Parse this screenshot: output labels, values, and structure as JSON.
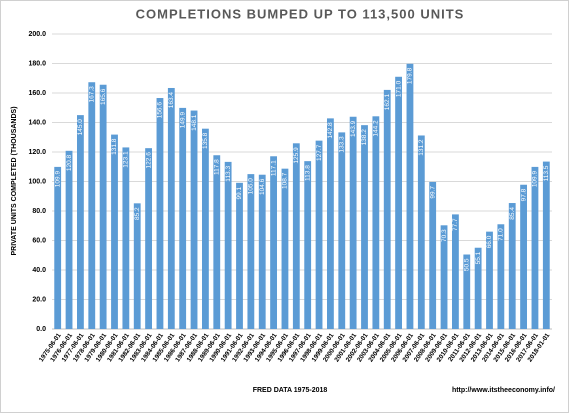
{
  "chart_data": {
    "type": "bar",
    "title": "COMPLETIONS BUMPED UP TO 113,500 UNITS",
    "y_label": "PRIVATE UNITS COMPLETED (THOUSANDS)",
    "x_label": "FRED DATA 1975-2018",
    "annotation": "http://www.itstheeconomy.info/",
    "categories": [
      "1975-06-01",
      "1976-06-01",
      "1977-06-01",
      "1978-06-01",
      "1979-06-01",
      "1980-06-01",
      "1981-06-01",
      "1982-06-01",
      "1983-06-01",
      "1984-06-01",
      "1985-06-01",
      "1986-06-01",
      "1987-06-01",
      "1988-06-01",
      "1989-06-01",
      "1990-06-01",
      "1991-06-01",
      "1992-06-01",
      "1993-06-01",
      "1994-06-01",
      "1995-06-01",
      "1996-06-01",
      "1997-06-01",
      "1998-06-01",
      "1999-06-01",
      "2000-06-01",
      "2001-06-01",
      "2002-06-01",
      "2003-06-01",
      "2004-06-01",
      "2005-06-01",
      "2006-06-01",
      "2007-06-01",
      "2008-06-01",
      "2009-06-01",
      "2010-06-01",
      "2011-06-01",
      "2012-06-01",
      "2013-06-01",
      "2014-06-01",
      "2015-06-01",
      "2016-06-01",
      "2017-06-01",
      "2018-01-01"
    ],
    "values": [
      109.9,
      120.8,
      145.0,
      167.3,
      165.6,
      131.8,
      123.1,
      85.2,
      122.6,
      156.6,
      163.4,
      149.9,
      148.1,
      135.8,
      117.8,
      113.3,
      99.1,
      105.0,
      104.6,
      117.1,
      108.7,
      125.9,
      113.8,
      127.7,
      142.8,
      133.3,
      143.9,
      138.2,
      144.2,
      162.1,
      171.0,
      179.8,
      131.2,
      99.7,
      70.3,
      77.7,
      50.5,
      55.1,
      66.0,
      71.0,
      85.4,
      97.8,
      109.9,
      113.5
    ],
    "value_labels": [
      "109.9",
      "120.8",
      "145.0",
      "167.3",
      "165.6",
      "131.8",
      "123.1",
      "85.2",
      "122.6",
      "156.6",
      "163.4",
      "149.9",
      "148.1",
      "135.8",
      "117.8",
      "113.3",
      "99.1",
      "105.0",
      "104.6",
      "117.1",
      "108.7",
      "125.9",
      "113.8",
      "127.7",
      "142.8",
      "133.3",
      "143.9",
      "138.2",
      "144.2",
      "162.1",
      "171.0",
      "179.8",
      "131.2",
      "99.7",
      "70.3",
      "77.7",
      "50.5",
      "55.1",
      "66.0",
      "71.0",
      "85.4",
      "97.8",
      "109.9",
      "113.5"
    ],
    "color": "#5b9bd5",
    "ylim": [
      0,
      200
    ],
    "yticks": [
      {
        "value": 0,
        "label": "0.0"
      },
      {
        "value": 20,
        "label": "20.0"
      },
      {
        "value": 40,
        "label": "40.0"
      },
      {
        "value": 60,
        "label": "60.0"
      },
      {
        "value": 80,
        "label": "80.0"
      },
      {
        "value": 100,
        "label": "100.0"
      },
      {
        "value": 120,
        "label": "120.0"
      },
      {
        "value": 140,
        "label": "140.0"
      },
      {
        "value": 160,
        "label": "160.0"
      },
      {
        "value": 180,
        "label": "180.0"
      },
      {
        "value": 200,
        "label": "200.0"
      }
    ],
    "grid": true
  }
}
